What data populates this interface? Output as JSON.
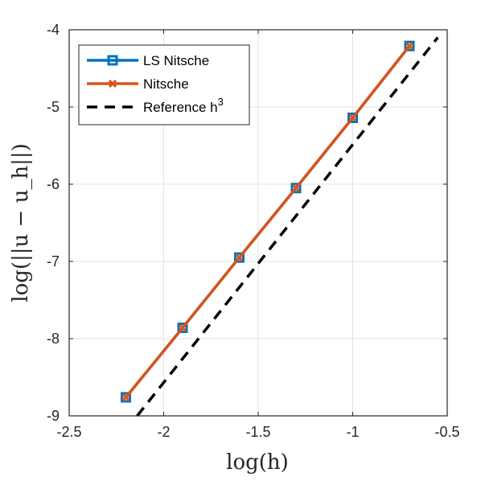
{
  "chart_data": {
    "type": "line",
    "xlabel": "log(h)",
    "ylabel": "log(||u − u_h||)",
    "xlim": [
      -2.5,
      -0.5
    ],
    "ylim": [
      -9,
      -4
    ],
    "xticks": [
      -2.5,
      -2,
      -1.5,
      -1,
      -0.5
    ],
    "yticks": [
      -9,
      -8,
      -7,
      -6,
      -5,
      -4
    ],
    "xtick_labels": [
      "-2.5",
      "-2",
      "-1.5",
      "-1",
      "-0.5"
    ],
    "ytick_labels": [
      "-9",
      "-8",
      "-7",
      "-6",
      "-5",
      "-4"
    ],
    "grid": true,
    "legend_position": "top-left",
    "series": [
      {
        "name": "LS Nitsche",
        "color": "#0072BD",
        "marker": "square",
        "line": "solid",
        "x": [
          -2.2,
          -1.9,
          -1.6,
          -1.3,
          -1.0,
          -0.7
        ],
        "y": [
          -8.76,
          -7.86,
          -6.95,
          -6.05,
          -5.14,
          -4.21
        ]
      },
      {
        "name": "Nitsche",
        "color": "#D95319",
        "marker": "x",
        "line": "solid",
        "x": [
          -2.2,
          -1.9,
          -1.6,
          -1.3,
          -1.0,
          -0.7
        ],
        "y": [
          -8.76,
          -7.86,
          -6.95,
          -6.05,
          -5.14,
          -4.21
        ]
      },
      {
        "name": "Reference h",
        "name_superscript": "3",
        "color": "#000000",
        "marker": "none",
        "line": "dashed",
        "x": [
          -2.14,
          -0.55
        ],
        "y": [
          -9.0,
          -4.1
        ]
      }
    ]
  }
}
